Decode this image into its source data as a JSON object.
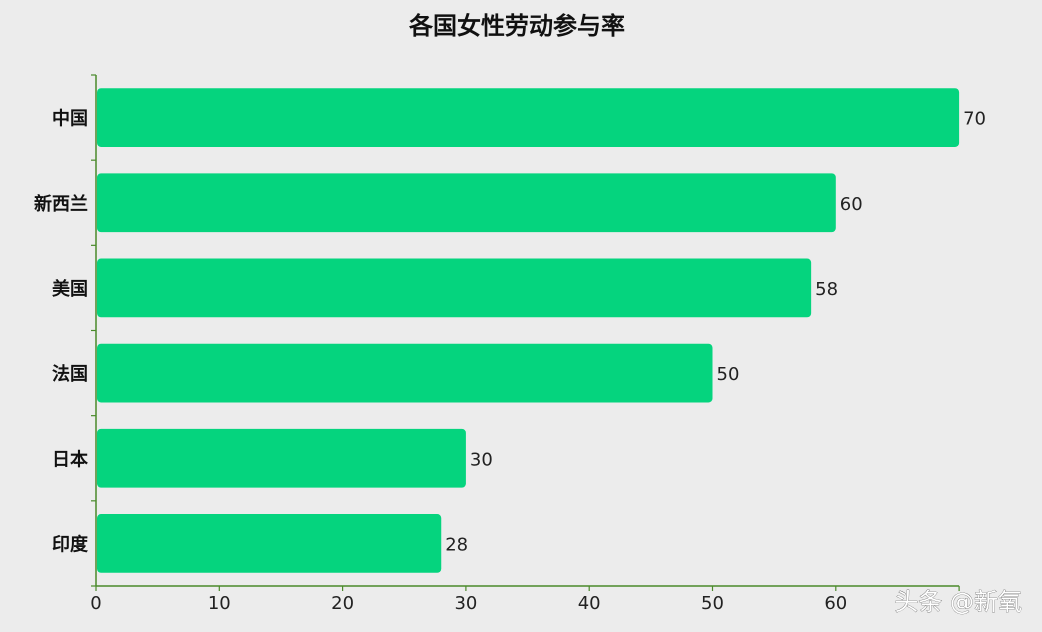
{
  "watermark": "头条 @新氧",
  "colors": {
    "bar": "#05d47e",
    "axis": "#4a8a2a",
    "background": "#ececec"
  },
  "chart_data": {
    "type": "bar",
    "orientation": "horizontal",
    "title": "各国女性劳动参与率",
    "categories": [
      "中国",
      "新西兰",
      "美国",
      "法国",
      "日本",
      "印度"
    ],
    "values": [
      70,
      60,
      58,
      50,
      30,
      28
    ],
    "xlim": [
      0,
      70
    ],
    "xticks": [
      0,
      10,
      20,
      30,
      40,
      50,
      60
    ],
    "grid": false,
    "legend": "none",
    "data_labels": true
  }
}
